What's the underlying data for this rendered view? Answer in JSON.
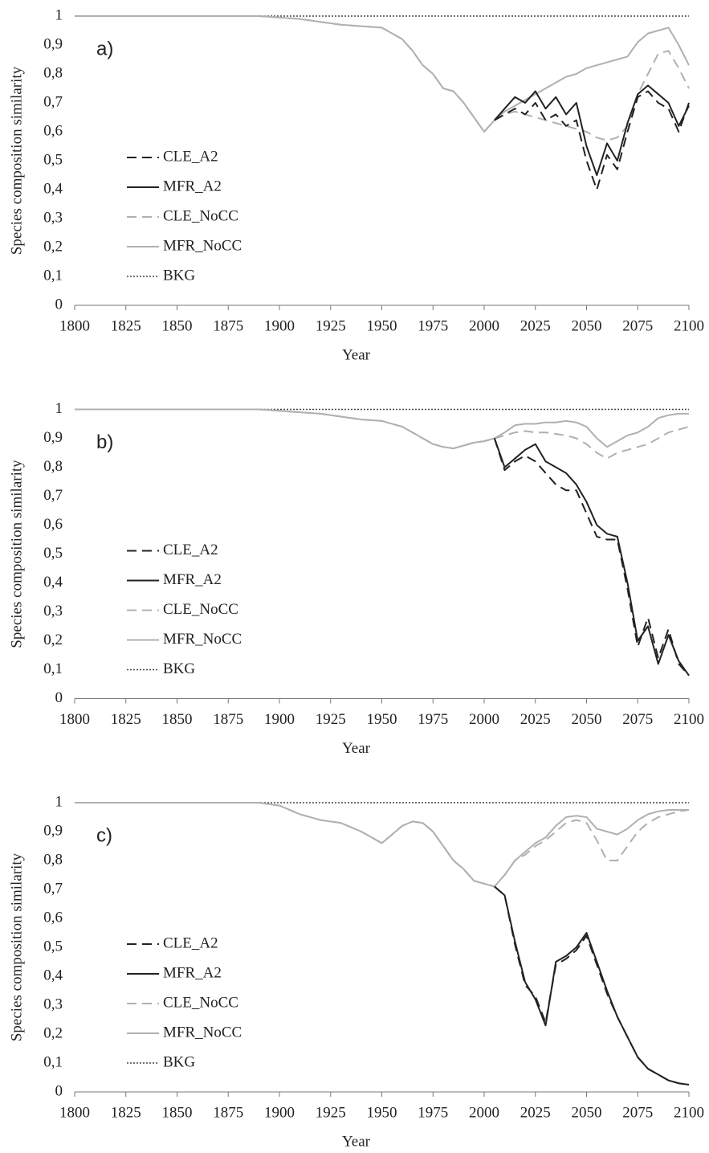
{
  "chart_data": [
    {
      "type": "line",
      "annotation": "a)",
      "xlabel": "Year",
      "ylabel": "Species composition similarity",
      "xlim": [
        1800,
        2100
      ],
      "xticks": [
        1800,
        1825,
        1850,
        1875,
        1900,
        1925,
        1950,
        1975,
        2000,
        2025,
        2050,
        2075,
        2100
      ],
      "ylim": [
        0,
        1
      ],
      "yticks": [
        0,
        {
          "value": 0.1,
          "label": "0,1"
        },
        {
          "value": 0.2,
          "label": "0,2"
        },
        {
          "value": 0.3,
          "label": "0,3"
        },
        {
          "value": 0.4,
          "label": "0,4"
        },
        {
          "value": 0.5,
          "label": "0,5"
        },
        {
          "value": 0.6,
          "label": "0,6"
        },
        {
          "value": 0.7,
          "label": "0,7"
        },
        {
          "value": 0.8,
          "label": "0,8"
        },
        {
          "value": 0.9,
          "label": "0,9"
        },
        1
      ],
      "x": [
        1800,
        1825,
        1850,
        1875,
        1890,
        1900,
        1910,
        1920,
        1930,
        1940,
        1950,
        1960,
        1965,
        1970,
        1975,
        1980,
        1985,
        1990,
        1995,
        2000,
        2005,
        2010,
        2015,
        2020,
        2025,
        2030,
        2035,
        2040,
        2045,
        2050,
        2055,
        2060,
        2065,
        2070,
        2075,
        2080,
        2085,
        2090,
        2095,
        2100
      ],
      "series": [
        {
          "name": "CLE_A2",
          "color": "#222222",
          "dash": "dashed",
          "values": [
            null,
            null,
            null,
            null,
            null,
            null,
            null,
            null,
            null,
            null,
            null,
            null,
            null,
            null,
            null,
            null,
            null,
            null,
            null,
            null,
            0.64,
            0.66,
            0.68,
            0.66,
            0.7,
            0.64,
            0.66,
            0.62,
            0.64,
            0.5,
            0.4,
            0.52,
            0.47,
            0.6,
            0.72,
            0.74,
            0.7,
            0.68,
            0.6,
            0.7
          ]
        },
        {
          "name": "MFR_A2",
          "color": "#222222",
          "dash": "solid",
          "values": [
            null,
            null,
            null,
            null,
            null,
            null,
            null,
            null,
            null,
            null,
            null,
            null,
            null,
            null,
            null,
            null,
            null,
            null,
            null,
            null,
            0.64,
            0.68,
            0.72,
            0.7,
            0.74,
            0.68,
            0.72,
            0.66,
            0.7,
            0.55,
            0.45,
            0.56,
            0.5,
            0.63,
            0.73,
            0.76,
            0.73,
            0.7,
            0.62,
            0.69
          ]
        },
        {
          "name": "CLE_NoCC",
          "color": "#b0b0b0",
          "dash": "dashed",
          "values": [
            1,
            1,
            1,
            1,
            1,
            0.995,
            0.99,
            0.98,
            0.97,
            0.965,
            0.96,
            0.92,
            0.88,
            0.83,
            0.8,
            0.75,
            0.74,
            0.7,
            0.65,
            0.6,
            0.64,
            0.66,
            0.67,
            0.66,
            0.65,
            0.64,
            0.63,
            0.62,
            0.61,
            0.6,
            0.58,
            0.57,
            0.58,
            0.62,
            0.73,
            0.8,
            0.87,
            0.88,
            0.82,
            0.75
          ]
        },
        {
          "name": "MFR_NoCC",
          "color": "#b0b0b0",
          "dash": "solid",
          "values": [
            1,
            1,
            1,
            1,
            1,
            0.995,
            0.99,
            0.98,
            0.97,
            0.965,
            0.96,
            0.92,
            0.88,
            0.83,
            0.8,
            0.75,
            0.74,
            0.7,
            0.65,
            0.6,
            0.64,
            0.67,
            0.69,
            0.71,
            0.73,
            0.75,
            0.77,
            0.79,
            0.8,
            0.82,
            0.83,
            0.84,
            0.85,
            0.86,
            0.91,
            0.94,
            0.95,
            0.96,
            0.9,
            0.83
          ]
        },
        {
          "name": "BKG",
          "color": "#444444",
          "dash": "dotted",
          "values": [
            1,
            1,
            1,
            1,
            1,
            1,
            1,
            1,
            1,
            1,
            1,
            1,
            1,
            1,
            1,
            1,
            1,
            1,
            1,
            1,
            1,
            1,
            1,
            1,
            1,
            1,
            1,
            1,
            1,
            1,
            1,
            1,
            1,
            1,
            1,
            1,
            1,
            1,
            1,
            1
          ]
        }
      ]
    },
    {
      "type": "line",
      "annotation": "b)",
      "xlabel": "Year",
      "ylabel": "Species composition similarity",
      "xlim": [
        1800,
        2100
      ],
      "xticks": [
        1800,
        1825,
        1850,
        1875,
        1900,
        1925,
        1950,
        1975,
        2000,
        2025,
        2050,
        2075,
        2100
      ],
      "ylim": [
        0,
        1
      ],
      "yticks": [
        0,
        {
          "value": 0.1,
          "label": "0,1"
        },
        {
          "value": 0.2,
          "label": "0,2"
        },
        {
          "value": 0.3,
          "label": "0,3"
        },
        {
          "value": 0.4,
          "label": "0,4"
        },
        {
          "value": 0.5,
          "label": "0,5"
        },
        {
          "value": 0.6,
          "label": "0,6"
        },
        {
          "value": 0.7,
          "label": "0,7"
        },
        {
          "value": 0.8,
          "label": "0,8"
        },
        {
          "value": 0.9,
          "label": "0,9"
        },
        1
      ],
      "x": [
        1800,
        1825,
        1850,
        1875,
        1890,
        1900,
        1910,
        1920,
        1930,
        1940,
        1950,
        1960,
        1965,
        1970,
        1975,
        1980,
        1985,
        1990,
        1995,
        2000,
        2005,
        2010,
        2015,
        2020,
        2025,
        2030,
        2035,
        2040,
        2045,
        2050,
        2055,
        2060,
        2065,
        2070,
        2075,
        2080,
        2085,
        2090,
        2095,
        2100
      ],
      "series": [
        {
          "name": "CLE_A2",
          "color": "#222222",
          "dash": "dashed",
          "values": [
            null,
            null,
            null,
            null,
            null,
            null,
            null,
            null,
            null,
            null,
            null,
            null,
            null,
            null,
            null,
            null,
            null,
            null,
            null,
            null,
            0.9,
            0.79,
            0.82,
            0.84,
            0.82,
            0.78,
            0.74,
            0.72,
            0.72,
            0.64,
            0.56,
            0.55,
            0.55,
            0.38,
            0.18,
            0.28,
            0.14,
            0.24,
            0.12,
            0.08
          ]
        },
        {
          "name": "MFR_A2",
          "color": "#222222",
          "dash": "solid",
          "values": [
            null,
            null,
            null,
            null,
            null,
            null,
            null,
            null,
            null,
            null,
            null,
            null,
            null,
            null,
            null,
            null,
            null,
            null,
            null,
            null,
            0.9,
            0.8,
            0.83,
            0.86,
            0.88,
            0.82,
            0.8,
            0.78,
            0.74,
            0.68,
            0.6,
            0.57,
            0.56,
            0.4,
            0.2,
            0.25,
            0.12,
            0.22,
            0.13,
            0.08
          ]
        },
        {
          "name": "CLE_NoCC",
          "color": "#b0b0b0",
          "dash": "dashed",
          "values": [
            1,
            1,
            1,
            1,
            1,
            0.995,
            0.99,
            0.985,
            0.975,
            0.965,
            0.96,
            0.94,
            0.92,
            0.9,
            0.88,
            0.87,
            0.865,
            0.875,
            0.885,
            0.89,
            0.9,
            0.91,
            0.92,
            0.925,
            0.92,
            0.92,
            0.915,
            0.91,
            0.9,
            0.88,
            0.85,
            0.83,
            0.85,
            0.86,
            0.87,
            0.88,
            0.9,
            0.92,
            0.93,
            0.94
          ]
        },
        {
          "name": "MFR_NoCC",
          "color": "#b0b0b0",
          "dash": "solid",
          "values": [
            1,
            1,
            1,
            1,
            1,
            0.995,
            0.99,
            0.985,
            0.975,
            0.965,
            0.96,
            0.94,
            0.92,
            0.9,
            0.88,
            0.87,
            0.865,
            0.875,
            0.885,
            0.89,
            0.9,
            0.92,
            0.945,
            0.95,
            0.95,
            0.955,
            0.955,
            0.96,
            0.955,
            0.94,
            0.9,
            0.87,
            0.89,
            0.91,
            0.92,
            0.94,
            0.97,
            0.98,
            0.985,
            0.985
          ]
        },
        {
          "name": "BKG",
          "color": "#444444",
          "dash": "dotted",
          "values": [
            1,
            1,
            1,
            1,
            1,
            1,
            1,
            1,
            1,
            1,
            1,
            1,
            1,
            1,
            1,
            1,
            1,
            1,
            1,
            1,
            1,
            1,
            1,
            1,
            1,
            1,
            1,
            1,
            1,
            1,
            1,
            1,
            1,
            1,
            1,
            1,
            1,
            1,
            1,
            1
          ]
        }
      ]
    },
    {
      "type": "line",
      "annotation": "c)",
      "xlabel": "Year",
      "ylabel": "Species composition similarity",
      "xlim": [
        1800,
        2100
      ],
      "xticks": [
        1800,
        1825,
        1850,
        1875,
        1900,
        1925,
        1950,
        1975,
        2000,
        2025,
        2050,
        2075,
        2100
      ],
      "ylim": [
        0,
        1
      ],
      "yticks": [
        0,
        {
          "value": 0.1,
          "label": "0,1"
        },
        {
          "value": 0.2,
          "label": "0,2"
        },
        {
          "value": 0.3,
          "label": "0,3"
        },
        {
          "value": 0.4,
          "label": "0,4"
        },
        {
          "value": 0.5,
          "label": "0,5"
        },
        {
          "value": 0.6,
          "label": "0,6"
        },
        {
          "value": 0.7,
          "label": "0,7"
        },
        {
          "value": 0.8,
          "label": "0,8"
        },
        {
          "value": 0.9,
          "label": "0,9"
        },
        1
      ],
      "x": [
        1800,
        1825,
        1850,
        1875,
        1890,
        1900,
        1910,
        1920,
        1930,
        1940,
        1950,
        1960,
        1965,
        1970,
        1975,
        1980,
        1985,
        1990,
        1995,
        2000,
        2005,
        2010,
        2015,
        2020,
        2025,
        2030,
        2035,
        2040,
        2045,
        2050,
        2055,
        2060,
        2065,
        2070,
        2075,
        2080,
        2085,
        2090,
        2095,
        2100
      ],
      "series": [
        {
          "name": "CLE_A2",
          "color": "#222222",
          "dash": "dashed",
          "values": [
            null,
            null,
            null,
            null,
            null,
            null,
            null,
            null,
            null,
            null,
            null,
            null,
            null,
            null,
            null,
            null,
            null,
            null,
            null,
            null,
            0.71,
            0.68,
            0.51,
            0.37,
            0.33,
            0.24,
            0.44,
            0.46,
            0.49,
            0.54,
            0.44,
            0.34,
            0.26,
            0.19,
            0.12,
            0.08,
            0.06,
            0.04,
            0.03,
            0.025
          ]
        },
        {
          "name": "MFR_A2",
          "color": "#222222",
          "dash": "solid",
          "values": [
            null,
            null,
            null,
            null,
            null,
            null,
            null,
            null,
            null,
            null,
            null,
            null,
            null,
            null,
            null,
            null,
            null,
            null,
            null,
            null,
            0.71,
            0.68,
            0.52,
            0.38,
            0.32,
            0.23,
            0.45,
            0.47,
            0.5,
            0.55,
            0.45,
            0.35,
            0.26,
            0.19,
            0.12,
            0.08,
            0.06,
            0.04,
            0.03,
            0.025
          ]
        },
        {
          "name": "CLE_NoCC",
          "color": "#b0b0b0",
          "dash": "dashed",
          "values": [
            1,
            1,
            1,
            1,
            1,
            0.99,
            0.96,
            0.94,
            0.93,
            0.9,
            0.86,
            0.92,
            0.935,
            0.93,
            0.9,
            0.85,
            0.8,
            0.77,
            0.73,
            0.72,
            0.71,
            0.75,
            0.8,
            0.82,
            0.85,
            0.87,
            0.9,
            0.93,
            0.94,
            0.93,
            0.87,
            0.8,
            0.8,
            0.85,
            0.9,
            0.93,
            0.95,
            0.96,
            0.97,
            0.975
          ]
        },
        {
          "name": "MFR_NoCC",
          "color": "#b0b0b0",
          "dash": "solid",
          "values": [
            1,
            1,
            1,
            1,
            1,
            0.99,
            0.96,
            0.94,
            0.93,
            0.9,
            0.86,
            0.92,
            0.935,
            0.93,
            0.9,
            0.85,
            0.8,
            0.77,
            0.73,
            0.72,
            0.71,
            0.75,
            0.8,
            0.83,
            0.86,
            0.88,
            0.92,
            0.95,
            0.955,
            0.95,
            0.91,
            0.9,
            0.89,
            0.91,
            0.94,
            0.96,
            0.97,
            0.975,
            0.975,
            0.975
          ]
        },
        {
          "name": "BKG",
          "color": "#444444",
          "dash": "dotted",
          "values": [
            1,
            1,
            1,
            1,
            1,
            1,
            1,
            1,
            1,
            1,
            1,
            1,
            1,
            1,
            1,
            1,
            1,
            1,
            1,
            1,
            1,
            1,
            1,
            1,
            1,
            1,
            1,
            1,
            1,
            1,
            1,
            1,
            1,
            1,
            1,
            1,
            1,
            1,
            1,
            1
          ]
        }
      ]
    }
  ]
}
